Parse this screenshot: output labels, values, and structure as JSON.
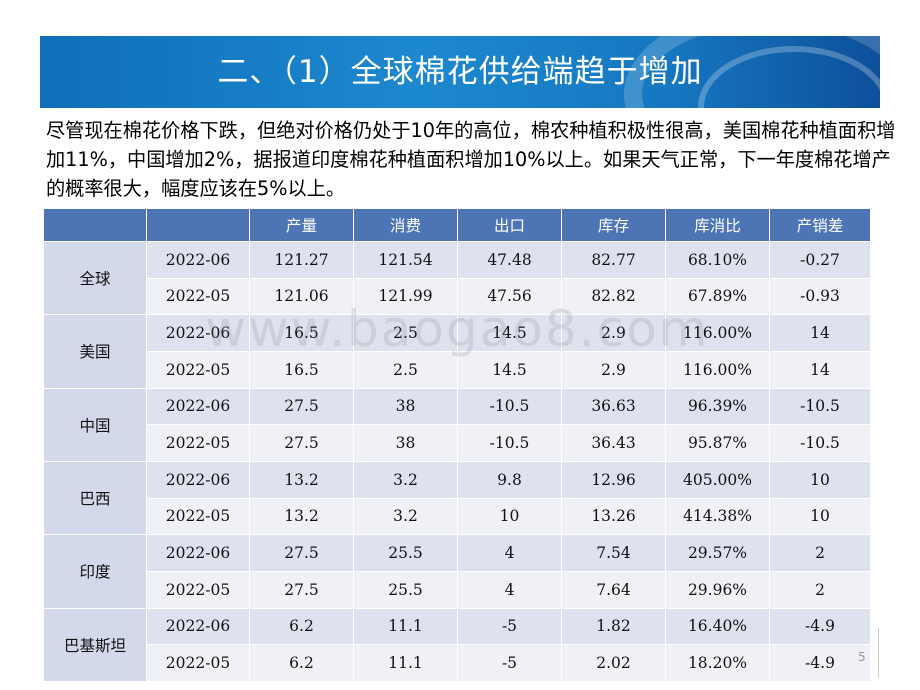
{
  "title": "二、（1）全球棉花供给端趋于增加",
  "intro": "尽管现在棉花价格下跌，但绝对价格仍处于10年的高位，棉农种植积极性很高，美国棉花种植面积增加11%，中国增加2%，据报道印度棉花种植面积增加10%以上。如果天气正常，下一年度棉花增产的概率很大，幅度应该在5%以上。",
  "watermark": "www.baogao8.com",
  "page_number": "5",
  "table": {
    "headers": [
      "",
      "",
      "产量",
      "消费",
      "出口",
      "库存",
      "库消比",
      "产销差"
    ],
    "groups": [
      {
        "region": "全球",
        "rows": [
          {
            "date": "2022-06",
            "values": [
              "121.27",
              "121.54",
              "47.48",
              "82.77",
              "68.10%",
              "-0.27"
            ]
          },
          {
            "date": "2022-05",
            "values": [
              "121.06",
              "121.99",
              "47.56",
              "82.82",
              "67.89%",
              "-0.93"
            ]
          }
        ]
      },
      {
        "region": "美国",
        "rows": [
          {
            "date": "2022-06",
            "values": [
              "16.5",
              "2.5",
              "14.5",
              "2.9",
              "116.00%",
              "14"
            ]
          },
          {
            "date": "2022-05",
            "values": [
              "16.5",
              "2.5",
              "14.5",
              "2.9",
              "116.00%",
              "14"
            ]
          }
        ]
      },
      {
        "region": "中国",
        "rows": [
          {
            "date": "2022-06",
            "values": [
              "27.5",
              "38",
              "-10.5",
              "36.63",
              "96.39%",
              "-10.5"
            ]
          },
          {
            "date": "2022-05",
            "values": [
              "27.5",
              "38",
              "-10.5",
              "36.43",
              "95.87%",
              "-10.5"
            ]
          }
        ]
      },
      {
        "region": "巴西",
        "rows": [
          {
            "date": "2022-06",
            "values": [
              "13.2",
              "3.2",
              "9.8",
              "12.96",
              "405.00%",
              "10"
            ]
          },
          {
            "date": "2022-05",
            "values": [
              "13.2",
              "3.2",
              "10",
              "13.26",
              "414.38%",
              "10"
            ]
          }
        ]
      },
      {
        "region": "印度",
        "rows": [
          {
            "date": "2022-06",
            "values": [
              "27.5",
              "25.5",
              "4",
              "7.54",
              "29.57%",
              "2"
            ]
          },
          {
            "date": "2022-05",
            "values": [
              "27.5",
              "25.5",
              "4",
              "7.64",
              "29.96%",
              "2"
            ]
          }
        ]
      },
      {
        "region": "巴基斯坦",
        "rows": [
          {
            "date": "2022-06",
            "values": [
              "6.2",
              "11.1",
              "-5",
              "1.82",
              "16.40%",
              "-4.9"
            ]
          },
          {
            "date": "2022-05",
            "values": [
              "6.2",
              "11.1",
              "-5",
              "2.02",
              "18.20%",
              "-4.9"
            ]
          }
        ]
      }
    ]
  },
  "colors": {
    "banner": "#1c88cf",
    "header_fill": "#4d75b6",
    "row_fill": "#dde2ee",
    "row_fill_alt": "#eff1f7"
  }
}
